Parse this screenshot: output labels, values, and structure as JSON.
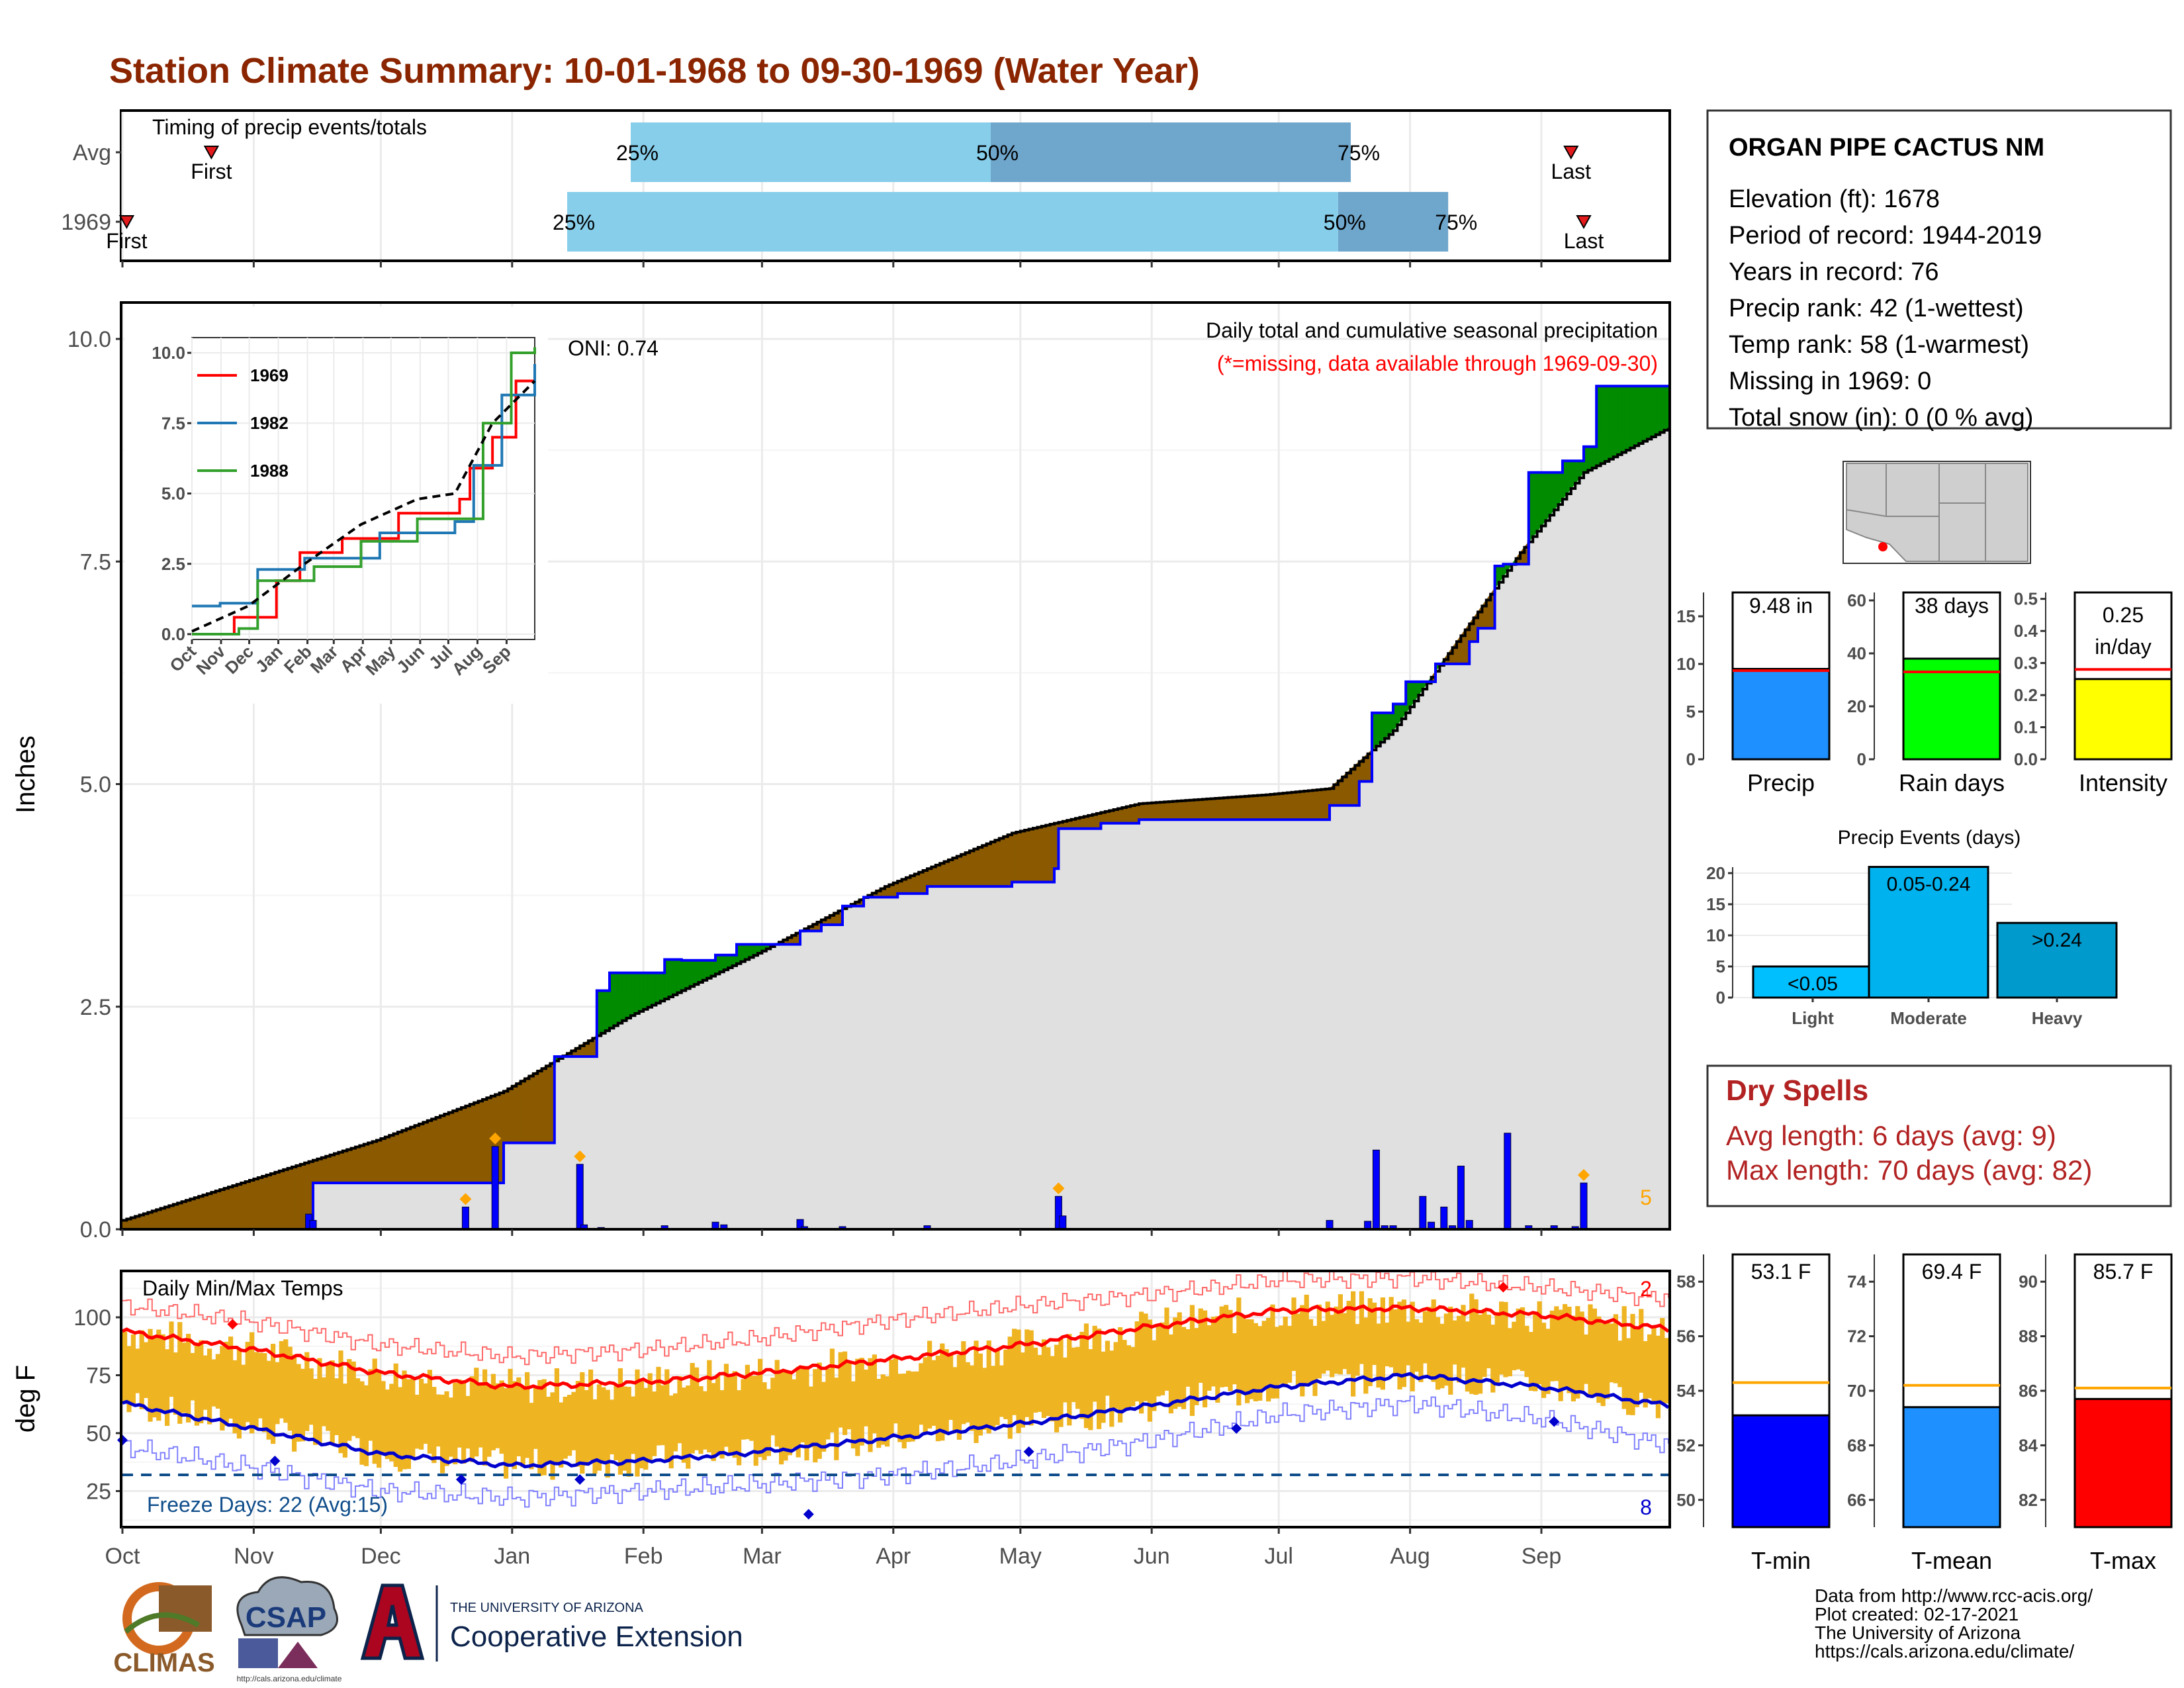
{
  "title": "Station Climate Summary: 10-01-1968 to 09-30-1969 (Water Year)",
  "colors": {
    "title": "#8b2500",
    "light_blue": "#87ceeb",
    "mid_blue": "#6fa6cc",
    "deficit": "#8b5a00",
    "surplus": "#008b00",
    "normal_fill": "#e0e0e0",
    "precip_bar": "#0000ff",
    "temp_band": "#eeb422",
    "tmax_line": "#ff0000",
    "tmin_line": "#0000cd",
    "marker": "#ffa500",
    "red_line": "#ff0000",
    "avg_line": "#ffa500"
  },
  "timing_panel": {
    "title": "Timing of precip events/totals",
    "rows": [
      {
        "label": "Avg",
        "first_label": "First",
        "last_label": "Last",
        "first_day": 21,
        "last_day": 342,
        "p25": 120,
        "p50": 205,
        "p75": 290,
        "labels": [
          "25%",
          "50%",
          "75%"
        ]
      },
      {
        "label": "1969",
        "first_label": "First",
        "last_label": "Last",
        "first_day": 1,
        "last_day": 345,
        "p25": 105,
        "p50": 287,
        "p75": 313,
        "labels": [
          "25%",
          "50%",
          "75%"
        ]
      }
    ]
  },
  "precip_panel": {
    "y_label": "Inches",
    "y_ticks": [
      "0.0",
      "2.5",
      "5.0",
      "7.5",
      "10.0"
    ],
    "legend_title": "Daily total and cumulative seasonal precipitation",
    "missing_note": "(*=missing, data available through 1969-09-30)",
    "oni": "ONI: 0.74",
    "marker_count": "5"
  },
  "inset": {
    "y_ticks": [
      "0.0",
      "2.5",
      "5.0",
      "7.5",
      "10.0"
    ],
    "x_ticks": [
      "Oct",
      "Nov",
      "Dec",
      "Jan",
      "Feb",
      "Mar",
      "Apr",
      "May",
      "Jun",
      "Jul",
      "Aug",
      "Sep"
    ],
    "series": [
      {
        "name": "1969",
        "color": "#ff0000"
      },
      {
        "name": "1982",
        "color": "#1f78b4"
      },
      {
        "name": "1988",
        "color": "#33a02c"
      }
    ]
  },
  "temp_panel": {
    "title": "Daily Min/Max Temps",
    "y_label": "deg F",
    "y_ticks": [
      "25",
      "50",
      "75",
      "100"
    ],
    "freeze_label": "Freeze Days: 22 (Avg:15)",
    "max_record_count": "2",
    "min_record_count": "8"
  },
  "months": [
    "Oct",
    "Nov",
    "Dec",
    "Jan",
    "Feb",
    "Mar",
    "Apr",
    "May",
    "Jun",
    "Jul",
    "Aug",
    "Sep"
  ],
  "station": {
    "name": "ORGAN PIPE CACTUS NM",
    "lines": [
      "Elevation (ft): 1678",
      "Period of record: 1944-2019",
      "Years in record: 76",
      "Precip rank: 42 (1-wettest)",
      "Temp rank: 58 (1-warmest)",
      "Missing in 1969: 0",
      "Total snow (in): 0 (0 % avg)"
    ]
  },
  "summary_bars": [
    {
      "label": "Precip",
      "value_text": "9.48 in",
      "value": 9.48,
      "avg": 9.3,
      "ymax": 17.5,
      "ticks": [
        "0",
        "5",
        "10",
        "15"
      ],
      "tick_vals": [
        0,
        5,
        10,
        15
      ],
      "color": "#1e90ff"
    },
    {
      "label": "Rain days",
      "value_text": "38 days",
      "value": 38,
      "avg": 33,
      "ymax": 63,
      "ticks": [
        "0",
        "20",
        "40",
        "60"
      ],
      "tick_vals": [
        0,
        20,
        40,
        60
      ],
      "color": "#00ff00"
    },
    {
      "label": "Intensity",
      "value_text": "0.25 in/day",
      "value_line1": "0.25",
      "value_line2": "in/day",
      "value": 0.25,
      "avg": 0.28,
      "ymax": 0.52,
      "ticks": [
        "0.0",
        "0.1",
        "0.2",
        "0.3",
        "0.4",
        "0.5"
      ],
      "tick_vals": [
        0,
        0.1,
        0.2,
        0.3,
        0.4,
        0.5
      ],
      "color": "#ffff00"
    }
  ],
  "precip_events": {
    "title": "Precip Events (days)",
    "y_ticks": [
      "0",
      "5",
      "10",
      "15",
      "20"
    ],
    "categories": [
      "Light",
      "Moderate",
      "Heavy"
    ],
    "values": [
      5,
      21,
      12
    ],
    "bar_labels": [
      "<0.05",
      "0.05-0.24",
      ">0.24"
    ],
    "colors": [
      "#00bfff",
      "#00b2ee",
      "#009acd"
    ]
  },
  "dry_spells": {
    "title": "Dry Spells",
    "avg_line": "Avg length: 6 days (avg: 9)",
    "max_line": "Max length: 70 days (avg: 82)"
  },
  "temp_bars": [
    {
      "label": "T-min",
      "value_text": "53.1 F",
      "value": 53.1,
      "avg": 54.3,
      "ymin": 49,
      "ymax": 59,
      "ticks": [
        "50",
        "52",
        "54",
        "56",
        "58"
      ],
      "tick_vals": [
        50,
        52,
        54,
        56,
        58
      ],
      "color": "#0000ff"
    },
    {
      "label": "T-mean",
      "value_text": "69.4 F",
      "value": 69.4,
      "avg": 70.2,
      "ymin": 65,
      "ymax": 75,
      "ticks": [
        "66",
        "68",
        "70",
        "72",
        "74"
      ],
      "tick_vals": [
        66,
        68,
        70,
        72,
        74
      ],
      "color": "#1e90ff"
    },
    {
      "label": "T-max",
      "value_text": "85.7 F",
      "value": 85.7,
      "avg": 86.1,
      "ymin": 81,
      "ymax": 91,
      "ticks": [
        "82",
        "84",
        "86",
        "88",
        "90"
      ],
      "tick_vals": [
        82,
        84,
        86,
        88,
        90
      ],
      "color": "#ff0000"
    }
  ],
  "footer": {
    "credits": [
      "Data from http://www.rcc-acis.org/",
      "Plot created: 02-17-2021",
      "The University of Arizona",
      "https://cals.arizona.edu/climate/"
    ],
    "logo_climas": "CLIMAS",
    "logo_csap": "CSAP",
    "logo_csap_url": "http://cals.arizona.edu/climate",
    "logo_ua_small": "THE UNIVERSITY OF ARIZONA",
    "logo_ua_big": "Cooperative Extension"
  },
  "chart_data": {
    "type": "area",
    "title": "Station Climate Summary: 10-01-1968 to 09-30-1969 (Water Year)",
    "ylabel": "Inches",
    "ylim": [
      0,
      10.3
    ],
    "observed_cumulative_steps": [
      [
        0,
        0.0
      ],
      [
        45,
        0.52
      ],
      [
        90,
        0.97
      ],
      [
        102,
        1.94
      ],
      [
        112,
        2.68
      ],
      [
        115,
        2.88
      ],
      [
        128,
        3.03
      ],
      [
        132,
        3.02
      ],
      [
        140,
        3.08
      ],
      [
        145,
        3.2
      ],
      [
        160,
        3.35
      ],
      [
        165,
        3.42
      ],
      [
        170,
        3.63
      ],
      [
        175,
        3.73
      ],
      [
        183,
        3.77
      ],
      [
        190,
        3.85
      ],
      [
        210,
        3.9
      ],
      [
        220,
        4.05
      ],
      [
        221,
        4.5
      ],
      [
        231,
        4.56
      ],
      [
        240,
        4.6
      ],
      [
        285,
        4.76
      ],
      [
        292,
        5.03
      ],
      [
        295,
        5.8
      ],
      [
        300,
        5.9
      ],
      [
        303,
        6.15
      ],
      [
        310,
        6.35
      ],
      [
        318,
        6.6
      ],
      [
        320,
        6.75
      ],
      [
        324,
        7.45
      ],
      [
        326,
        7.47
      ],
      [
        332,
        8.5
      ],
      [
        340,
        8.63
      ],
      [
        345,
        8.79
      ],
      [
        348,
        9.47
      ],
      [
        365,
        9.48
      ]
    ],
    "normal_cumulative_anchors": [
      [
        0,
        0.1
      ],
      [
        30,
        0.55
      ],
      [
        60,
        1.0
      ],
      [
        90,
        1.55
      ],
      [
        120,
        2.4
      ],
      [
        150,
        3.1
      ],
      [
        180,
        3.85
      ],
      [
        210,
        4.45
      ],
      [
        240,
        4.78
      ],
      [
        270,
        4.88
      ],
      [
        285,
        4.95
      ],
      [
        300,
        5.6
      ],
      [
        315,
        6.6
      ],
      [
        330,
        7.6
      ],
      [
        345,
        8.5
      ],
      [
        365,
        9.0
      ]
    ],
    "daily_precip": [
      [
        44,
        0.17
      ],
      [
        45,
        0.1
      ],
      [
        81,
        0.25
      ],
      [
        88,
        0.93
      ],
      [
        108,
        0.73
      ],
      [
        109,
        0.05
      ],
      [
        113,
        0.02
      ],
      [
        128,
        0.04
      ],
      [
        140,
        0.08
      ],
      [
        142,
        0.05
      ],
      [
        160,
        0.11
      ],
      [
        161,
        0.03
      ],
      [
        170,
        0.03
      ],
      [
        190,
        0.04
      ],
      [
        221,
        0.37
      ],
      [
        222,
        0.15
      ],
      [
        285,
        0.1
      ],
      [
        294,
        0.09
      ],
      [
        296,
        0.89
      ],
      [
        298,
        0.04
      ],
      [
        300,
        0.04
      ],
      [
        307,
        0.37
      ],
      [
        309,
        0.08
      ],
      [
        312,
        0.25
      ],
      [
        314,
        0.04
      ],
      [
        316,
        0.71
      ],
      [
        318,
        0.1
      ],
      [
        327,
        1.08
      ],
      [
        332,
        0.04
      ],
      [
        338,
        0.04
      ],
      [
        343,
        0.03
      ],
      [
        345,
        0.52
      ]
    ],
    "inset_series": [
      {
        "name": "1969",
        "points": [
          [
            0,
            0
          ],
          [
            45,
            0.6
          ],
          [
            90,
            1.9
          ],
          [
            115,
            2.9
          ],
          [
            160,
            3.4
          ],
          [
            220,
            4.3
          ],
          [
            285,
            4.8
          ],
          [
            296,
            5.9
          ],
          [
            320,
            7.0
          ],
          [
            345,
            9.0
          ],
          [
            365,
            9.5
          ]
        ]
      },
      {
        "name": "1982",
        "points": [
          [
            0,
            1.0
          ],
          [
            30,
            1.1
          ],
          [
            70,
            2.3
          ],
          [
            120,
            2.7
          ],
          [
            200,
            3.6
          ],
          [
            280,
            4.0
          ],
          [
            300,
            6.0
          ],
          [
            330,
            8.5
          ],
          [
            365,
            9.6
          ]
        ]
      },
      {
        "name": "1988",
        "points": [
          [
            0,
            0
          ],
          [
            50,
            0.2
          ],
          [
            70,
            1.9
          ],
          [
            130,
            2.4
          ],
          [
            180,
            3.3
          ],
          [
            240,
            4.1
          ],
          [
            280,
            4.1
          ],
          [
            310,
            7.5
          ],
          [
            340,
            10.0
          ],
          [
            365,
            10.2
          ]
        ]
      },
      {
        "name": "normal",
        "points": [
          [
            0,
            0.1
          ],
          [
            60,
            1.0
          ],
          [
            120,
            2.5
          ],
          [
            180,
            3.9
          ],
          [
            240,
            4.8
          ],
          [
            280,
            5.0
          ],
          [
            320,
            7.5
          ],
          [
            365,
            9.0
          ]
        ]
      }
    ],
    "temperature": {
      "ylim": [
        10,
        120
      ],
      "freeze_line": 32,
      "tmax_normal_anchors": [
        [
          0,
          94
        ],
        [
          31,
          86
        ],
        [
          61,
          76
        ],
        [
          92,
          70
        ],
        [
          123,
          72
        ],
        [
          151,
          76
        ],
        [
          182,
          82
        ],
        [
          212,
          88
        ],
        [
          243,
          96
        ],
        [
          273,
          103
        ],
        [
          304,
          104
        ],
        [
          335,
          101
        ],
        [
          365,
          95
        ]
      ],
      "tmin_normal_anchors": [
        [
          0,
          63
        ],
        [
          31,
          52
        ],
        [
          61,
          41
        ],
        [
          92,
          36
        ],
        [
          123,
          38
        ],
        [
          151,
          42
        ],
        [
          182,
          48
        ],
        [
          212,
          54
        ],
        [
          243,
          62
        ],
        [
          273,
          70
        ],
        [
          304,
          75
        ],
        [
          335,
          70
        ],
        [
          365,
          62
        ]
      ],
      "tmax_record_anchors": [
        [
          0,
          105
        ],
        [
          31,
          98
        ],
        [
          61,
          88
        ],
        [
          92,
          83
        ],
        [
          123,
          86
        ],
        [
          151,
          91
        ],
        [
          182,
          99
        ],
        [
          212,
          105
        ],
        [
          243,
          110
        ],
        [
          273,
          116
        ],
        [
          304,
          117
        ],
        [
          335,
          113
        ],
        [
          365,
          108
        ]
      ],
      "tmin_record_anchors": [
        [
          0,
          44
        ],
        [
          31,
          35
        ],
        [
          61,
          25
        ],
        [
          92,
          22
        ],
        [
          123,
          25
        ],
        [
          151,
          28
        ],
        [
          182,
          32
        ],
        [
          212,
          38
        ],
        [
          243,
          47
        ],
        [
          273,
          58
        ],
        [
          304,
          63
        ],
        [
          335,
          56
        ],
        [
          365,
          45
        ]
      ],
      "record_max_days": [
        [
          26,
          97
        ],
        [
          326,
          113
        ]
      ],
      "record_min_days": [
        [
          0,
          47
        ],
        [
          36,
          38
        ],
        [
          80,
          30
        ],
        [
          108,
          30
        ],
        [
          162,
          15
        ],
        [
          214,
          42
        ],
        [
          263,
          52
        ],
        [
          338,
          55
        ]
      ]
    }
  }
}
